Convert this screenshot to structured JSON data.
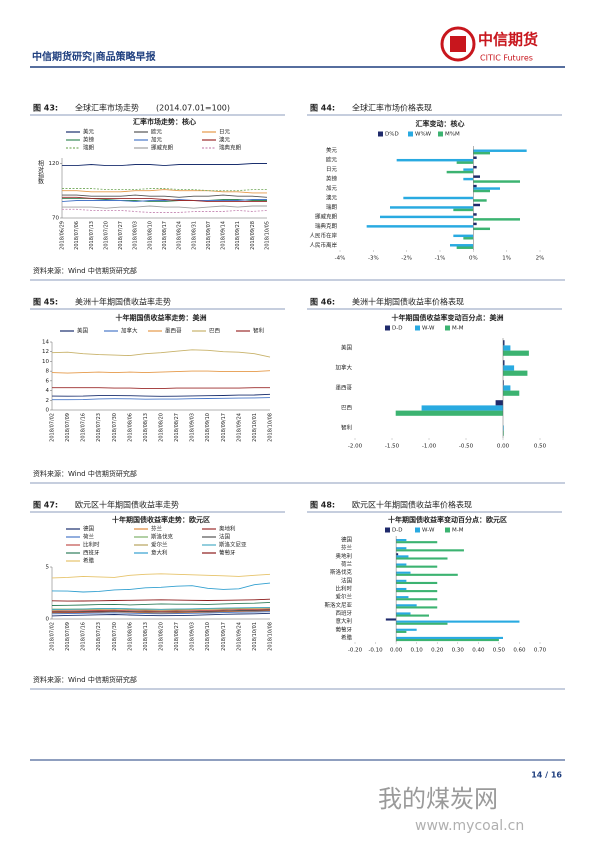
{
  "header": {
    "title": "中信期货研究|商品策略早报",
    "logo_cn": "中信期货",
    "logo_en": "CITIC Futures"
  },
  "figures": [
    {
      "label": "图 43:",
      "title": "全球汇率市场走势",
      "note": "(2014.07.01=100)"
    },
    {
      "label": "图 44:",
      "title": "全球汇率市场价格表现"
    },
    {
      "label": "图 45:",
      "title": "美洲十年期国债收益率走势"
    },
    {
      "label": "图 46:",
      "title": "美洲十年期国债收益率价格表现"
    },
    {
      "label": "图 47:",
      "title": "欧元区十年期国债收益率走势"
    },
    {
      "label": "图 48:",
      "title": "欧元区十年期国债收益率价格表现"
    }
  ],
  "sources": [
    "资料来源：Wind  中信期货研究部",
    "资料来源：Wind  中信期货研究部",
    "资料来源：Wind  中信期货研究部"
  ],
  "footer": {
    "page": "14 / 16"
  },
  "watermark": {
    "name": "我的煤炭网",
    "url": "www.mycoal.cn"
  },
  "chart_data": [
    {
      "type": "line",
      "title": "汇率市场走势：核心",
      "y_label": "相对指数",
      "ylim": [
        70,
        125
      ],
      "yticks": [
        70,
        120
      ],
      "categories": [
        "2018/06/29",
        "2018/07/06",
        "2018/07/13",
        "2018/07/20",
        "2018/07/27",
        "2018/08/03",
        "2018/08/10",
        "2018/08/17",
        "2018/08/24",
        "2018/08/31",
        "2018/09/07",
        "2018/09/14",
        "2018/09/21",
        "2018/09/28",
        "2018/10/05"
      ],
      "series": [
        {
          "name": "美元",
          "color": "#1a2f6e",
          "values": [
            118,
            118,
            119,
            118,
            118,
            119,
            119,
            118,
            119,
            119,
            119,
            119,
            119,
            120,
            120
          ]
        },
        {
          "name": "欧元",
          "color": "#555555",
          "values": [
            91,
            91,
            90,
            90,
            90,
            91,
            90,
            90,
            89,
            90,
            90,
            91,
            90,
            90,
            89
          ]
        },
        {
          "name": "日元",
          "color": "#e59a4a",
          "values": [
            95,
            95,
            94,
            94,
            94,
            95,
            95,
            96,
            95,
            95,
            95,
            94,
            94,
            93,
            93
          ]
        },
        {
          "name": "英镑",
          "color": "#3a8a5a",
          "values": [
            88,
            88,
            88,
            87,
            86,
            86,
            85,
            85,
            86,
            86,
            86,
            87,
            87,
            86,
            86
          ]
        },
        {
          "name": "加元",
          "color": "#4a78c8",
          "values": [
            85,
            86,
            86,
            86,
            86,
            85,
            86,
            86,
            87,
            86,
            86,
            86,
            86,
            87,
            87
          ]
        },
        {
          "name": "澳元",
          "color": "#9b2b2b",
          "values": [
            89,
            89,
            88,
            88,
            88,
            88,
            88,
            87,
            86,
            86,
            85,
            85,
            85,
            85,
            85
          ]
        },
        {
          "name": "瑞朗",
          "color": "#7fb069",
          "dash": true,
          "values": [
            97,
            97,
            97,
            96,
            96,
            96,
            97,
            97,
            96,
            96,
            95,
            95,
            95,
            96,
            96
          ]
        },
        {
          "name": "挪威克朗",
          "color": "#a0a0a0",
          "values": [
            80,
            80,
            80,
            79,
            80,
            80,
            81,
            80,
            80,
            79,
            80,
            81,
            80,
            81,
            81
          ]
        },
        {
          "name": "瑞典克朗",
          "color": "#c98fb8",
          "dash": true,
          "values": [
            78,
            78,
            77,
            77,
            77,
            76,
            75,
            75,
            75,
            76,
            76,
            76,
            77,
            76,
            77
          ]
        }
      ]
    },
    {
      "type": "hbar",
      "title": "汇率变动：核心",
      "xlim": [
        -4,
        2
      ],
      "xticks": [
        {
          "value": -4,
          "label": "-4%"
        },
        {
          "value": -3,
          "label": "-3%"
        },
        {
          "value": -2,
          "label": "-2%"
        },
        {
          "value": -1,
          "label": "-1%"
        },
        {
          "value": 0,
          "label": "0%"
        },
        {
          "value": 1,
          "label": "1%"
        },
        {
          "value": 2,
          "label": "2%"
        }
      ],
      "categories": [
        "美元",
        "欧元",
        "日元",
        "英镑",
        "加元",
        "澳元",
        "瑞朗",
        "挪威克朗",
        "瑞典克朗",
        "人民币在岸",
        "人民币离岸"
      ],
      "series": [
        {
          "name": "D%D",
          "color": "#1f2a6b",
          "values": [
            0.0,
            0.1,
            0.1,
            0.2,
            0.1,
            0.0,
            0.2,
            0.1,
            0.1,
            0.0,
            0.0
          ]
        },
        {
          "name": "W%W",
          "color": "#29aae1",
          "values": [
            1.6,
            -2.3,
            -0.3,
            -0.3,
            0.8,
            -2.1,
            -2.5,
            -2.8,
            -3.2,
            -0.6,
            -0.7
          ]
        },
        {
          "name": "M%M",
          "color": "#3cb371",
          "values": [
            0.5,
            -0.5,
            -0.8,
            1.4,
            0.5,
            0.4,
            -0.6,
            1.4,
            0.5,
            -0.3,
            -0.5
          ]
        }
      ]
    },
    {
      "type": "line",
      "title": "十年期国债收益率走势：美洲",
      "ylim": [
        0,
        14
      ],
      "yticks": [
        0,
        2,
        4,
        6,
        8,
        10,
        12,
        14
      ],
      "categories": [
        "2018/07/02",
        "2018/07/09",
        "2018/07/16",
        "2018/07/23",
        "2018/07/30",
        "2018/08/06",
        "2018/08/13",
        "2018/08/20",
        "2018/08/27",
        "2018/09/03",
        "2018/09/10",
        "2018/09/17",
        "2018/09/24",
        "2018/10/01",
        "2018/10/08"
      ],
      "series": [
        {
          "name": "美国",
          "color": "#1a2f6e",
          "values": [
            2.87,
            2.85,
            2.86,
            2.96,
            2.96,
            2.95,
            2.87,
            2.82,
            2.85,
            2.9,
            2.94,
            2.99,
            3.06,
            3.09,
            3.23
          ]
        },
        {
          "name": "加拿大",
          "color": "#4a78c8",
          "values": [
            2.13,
            2.12,
            2.15,
            2.28,
            2.33,
            2.31,
            2.22,
            2.24,
            2.25,
            2.33,
            2.36,
            2.41,
            2.44,
            2.49,
            2.55
          ]
        },
        {
          "name": "墨西哥",
          "color": "#e59a4a",
          "values": [
            7.7,
            7.6,
            7.7,
            7.8,
            7.7,
            7.8,
            7.7,
            7.8,
            7.9,
            8.0,
            8.0,
            7.9,
            7.9,
            7.9,
            8.1
          ]
        },
        {
          "name": "巴西",
          "color": "#c8b26a",
          "values": [
            11.8,
            11.9,
            11.6,
            11.4,
            11.3,
            11.2,
            11.6,
            11.8,
            12.1,
            12.4,
            12.3,
            12.0,
            11.9,
            11.6,
            10.9
          ]
        },
        {
          "name": "智利",
          "color": "#9b2b2b",
          "values": [
            4.6,
            4.6,
            4.6,
            4.6,
            4.5,
            4.5,
            4.4,
            4.4,
            4.5,
            4.5,
            4.5,
            4.5,
            4.5,
            4.6,
            4.6
          ]
        }
      ]
    },
    {
      "type": "hbar",
      "title": "十年期国债收益率变动百分点：美洲",
      "xlim": [
        -2,
        0.5
      ],
      "xticks": [
        {
          "value": -2,
          "label": "-2.00"
        },
        {
          "value": -1.5,
          "label": "-1.50"
        },
        {
          "value": -1,
          "label": "-1.00"
        },
        {
          "value": -0.5,
          "label": "-0.50"
        },
        {
          "value": 0,
          "label": "0.00"
        },
        {
          "value": 0.5,
          "label": "0.50"
        }
      ],
      "categories": [
        "美国",
        "加拿大",
        "墨西哥",
        "巴西",
        "智利"
      ],
      "series": [
        {
          "name": "D-D",
          "color": "#1f2a6b",
          "values": [
            0.02,
            0.02,
            0.01,
            -0.1,
            0.0
          ]
        },
        {
          "name": "W-W",
          "color": "#29aae1",
          "values": [
            0.1,
            0.15,
            0.1,
            -1.1,
            0.01
          ]
        },
        {
          "name": "M-M",
          "color": "#3cb371",
          "values": [
            0.35,
            0.33,
            0.22,
            -1.45,
            0.01
          ]
        }
      ]
    },
    {
      "type": "line",
      "title": "十年期国债收益率走势：欧元区",
      "ylim": [
        0,
        5
      ],
      "yticks": [
        0,
        5
      ],
      "categories": [
        "2018/07/02",
        "2018/07/09",
        "2018/07/16",
        "2018/07/23",
        "2018/07/30",
        "2018/08/06",
        "2018/08/13",
        "2018/08/20",
        "2018/08/27",
        "2018/09/03",
        "2018/09/10",
        "2018/09/17",
        "2018/09/24",
        "2018/10/01",
        "2018/10/08"
      ],
      "series": [
        {
          "name": "德国",
          "color": "#1a2f6e",
          "values": [
            0.3,
            0.35,
            0.37,
            0.4,
            0.43,
            0.38,
            0.35,
            0.32,
            0.33,
            0.36,
            0.4,
            0.45,
            0.48,
            0.5,
            0.55
          ]
        },
        {
          "name": "芬兰",
          "color": "#e08a3c",
          "values": [
            0.6,
            0.6,
            0.6,
            0.65,
            0.7,
            0.65,
            0.6,
            0.55,
            0.58,
            0.62,
            0.65,
            0.7,
            0.72,
            0.75,
            0.8
          ]
        },
        {
          "name": "奥地利",
          "color": "#9b2b2b",
          "values": [
            0.65,
            0.65,
            0.67,
            0.7,
            0.75,
            0.7,
            0.68,
            0.65,
            0.67,
            0.7,
            0.72,
            0.76,
            0.8,
            0.82,
            0.86
          ]
        },
        {
          "name": "荷兰",
          "color": "#4a78c8",
          "values": [
            0.5,
            0.52,
            0.55,
            0.58,
            0.6,
            0.56,
            0.52,
            0.5,
            0.52,
            0.55,
            0.58,
            0.62,
            0.65,
            0.67,
            0.7
          ]
        },
        {
          "name": "斯洛伐克",
          "color": "#7fb069",
          "values": [
            0.95,
            0.95,
            0.97,
            1.0,
            1.0,
            0.98,
            0.95,
            0.93,
            0.95,
            0.97,
            1.0,
            1.02,
            1.05,
            1.07,
            1.1
          ]
        },
        {
          "name": "法国",
          "color": "#555555",
          "values": [
            0.68,
            0.7,
            0.72,
            0.75,
            0.78,
            0.72,
            0.68,
            0.66,
            0.68,
            0.7,
            0.74,
            0.78,
            0.82,
            0.84,
            0.88
          ]
        },
        {
          "name": "比利时",
          "color": "#c0504d",
          "values": [
            0.75,
            0.78,
            0.8,
            0.82,
            0.85,
            0.8,
            0.77,
            0.75,
            0.77,
            0.8,
            0.83,
            0.86,
            0.9,
            0.92,
            0.95
          ]
        },
        {
          "name": "爱尔兰",
          "color": "#b7a45c",
          "values": [
            0.85,
            0.88,
            0.9,
            0.92,
            0.95,
            0.9,
            0.87,
            0.85,
            0.87,
            0.9,
            0.93,
            0.96,
            1.0,
            1.02,
            1.05
          ]
        },
        {
          "name": "斯洛文尼亚",
          "color": "#4bacc6",
          "values": [
            0.9,
            0.92,
            0.95,
            1.0,
            1.02,
            0.98,
            0.95,
            0.92,
            0.95,
            0.98,
            1.02,
            1.05,
            1.08,
            1.1,
            1.12
          ]
        },
        {
          "name": "西班牙",
          "color": "#2e7d5b",
          "values": [
            1.3,
            1.32,
            1.35,
            1.38,
            1.4,
            1.36,
            1.4,
            1.45,
            1.42,
            1.42,
            1.4,
            1.45,
            1.5,
            1.52,
            1.6
          ]
        },
        {
          "name": "意大利",
          "color": "#33a0d0",
          "values": [
            2.7,
            2.68,
            2.6,
            2.65,
            2.8,
            2.85,
            3.0,
            3.05,
            3.15,
            3.2,
            2.95,
            2.85,
            2.9,
            3.3,
            3.45
          ]
        },
        {
          "name": "葡萄牙",
          "color": "#8b1a1a",
          "values": [
            1.75,
            1.72,
            1.73,
            1.75,
            1.78,
            1.8,
            1.82,
            1.85,
            1.82,
            1.8,
            1.78,
            1.8,
            1.82,
            1.85,
            1.9
          ]
        },
        {
          "name": "希腊",
          "color": "#e6c36a",
          "values": [
            3.95,
            4.0,
            4.1,
            4.05,
            4.0,
            4.2,
            4.3,
            4.35,
            4.3,
            4.25,
            4.2,
            4.15,
            4.1,
            4.2,
            4.3
          ]
        }
      ]
    },
    {
      "type": "hbar",
      "title": "十年期国债收益率变动百分点：欧元区",
      "xlim": [
        -0.2,
        0.7
      ],
      "xticks": [
        {
          "value": -0.2,
          "label": "-0.20"
        },
        {
          "value": -0.1,
          "label": "-0.10"
        },
        {
          "value": 0,
          "label": "0.00"
        },
        {
          "value": 0.1,
          "label": "0.10"
        },
        {
          "value": 0.2,
          "label": "0.20"
        },
        {
          "value": 0.3,
          "label": "0.30"
        },
        {
          "value": 0.4,
          "label": "0.40"
        },
        {
          "value": 0.5,
          "label": "0.50"
        },
        {
          "value": 0.6,
          "label": "0.60"
        },
        {
          "value": 0.7,
          "label": "0.70"
        }
      ],
      "categories": [
        "德国",
        "芬兰",
        "奥地利",
        "荷兰",
        "斯洛伐克",
        "法国",
        "比利时",
        "爱尔兰",
        "斯洛文尼亚",
        "西班牙",
        "意大利",
        "葡萄牙",
        "希腊"
      ],
      "series": [
        {
          "name": "D-D",
          "color": "#1f2a6b",
          "values": [
            0.0,
            0.0,
            0.01,
            0.0,
            0.0,
            0.0,
            0.0,
            0.0,
            0.0,
            0.0,
            -0.05,
            0.0,
            0.0
          ]
        },
        {
          "name": "W-W",
          "color": "#29aae1",
          "values": [
            0.05,
            0.05,
            0.06,
            0.05,
            0.07,
            0.05,
            0.05,
            0.06,
            0.1,
            0.07,
            0.6,
            0.1,
            0.52
          ]
        },
        {
          "name": "M-M",
          "color": "#3cb371",
          "values": [
            0.2,
            0.33,
            0.25,
            0.2,
            0.3,
            0.2,
            0.2,
            0.2,
            0.2,
            0.16,
            0.25,
            0.05,
            0.5
          ]
        }
      ]
    }
  ]
}
